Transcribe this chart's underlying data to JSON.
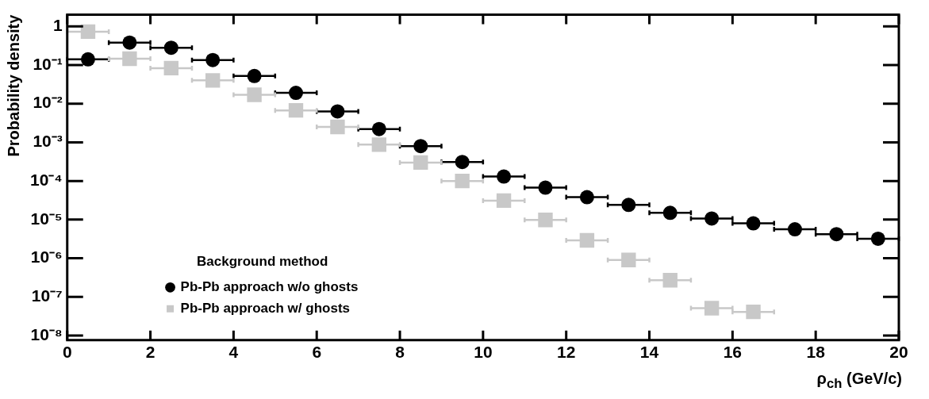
{
  "chart_data": {
    "type": "scatter",
    "xlabel": "ρ$_{ch}$ (GeV/c)",
    "ylabel": "Probability density",
    "legend_title": "Background method",
    "x": [
      0.5,
      1.5,
      2.5,
      3.5,
      4.5,
      5.5,
      6.5,
      7.5,
      8.5,
      9.5,
      10.5,
      11.5,
      12.5,
      13.5,
      14.5,
      15.5,
      16.5,
      17.5,
      18.5,
      19.5
    ],
    "series": [
      {
        "name": "Pb-Pb approach w/o ghosts",
        "color": "#000000",
        "marker": "circle",
        "values": [
          0.14,
          0.38,
          0.28,
          0.135,
          0.052,
          0.019,
          0.0063,
          0.0022,
          0.0008,
          0.00031,
          0.00013,
          6.7e-05,
          3.8e-05,
          2.4e-05,
          1.5e-05,
          1.07e-05,
          8e-06,
          5.6e-06,
          4.2e-06,
          3.2e-06
        ],
        "xerrors": [
          0.5,
          0.5,
          0.5,
          0.5,
          0.5,
          0.5,
          0.5,
          0.5,
          0.5,
          0.5,
          0.5,
          0.5,
          0.5,
          0.5,
          0.5,
          0.5,
          0.5,
          0.5,
          0.5,
          0.5
        ]
      },
      {
        "name": "Pb-Pb approach w/ ghosts",
        "color": "#c8c8c8",
        "marker": "square",
        "values": [
          0.73,
          0.146,
          0.083,
          0.04,
          0.017,
          0.0067,
          0.0025,
          0.00087,
          0.0003,
          0.0001,
          3.1e-05,
          9.8e-06,
          2.9e-06,
          9e-07,
          2.7e-07,
          5.1e-08,
          4.1e-08,
          null,
          null,
          null
        ],
        "xerrors": [
          0.5,
          0.5,
          0.5,
          0.5,
          0.5,
          0.5,
          0.5,
          0.5,
          0.5,
          0.5,
          0.5,
          0.5,
          0.5,
          0.5,
          0.5,
          0.5,
          0.5,
          null,
          null,
          null
        ]
      }
    ],
    "xlim": [
      0,
      20
    ],
    "xticks": [
      0,
      2,
      4,
      6,
      8,
      10,
      12,
      14,
      16,
      18,
      20
    ],
    "ylim": [
      7.6e-09,
      2
    ],
    "yticks": [
      {
        "value": 1e-08,
        "label": "10⁻⁸"
      },
      {
        "value": 1e-07,
        "label": "10⁻⁷"
      },
      {
        "value": 1e-06,
        "label": "10⁻⁶"
      },
      {
        "value": 1e-05,
        "label": "10⁻⁵"
      },
      {
        "value": 0.0001,
        "label": "10⁻⁴"
      },
      {
        "value": 0.001,
        "label": "10⁻³"
      },
      {
        "value": 0.01,
        "label": "10⁻²"
      },
      {
        "value": 0.1,
        "label": "10⁻¹"
      },
      1
    ],
    "log": "y",
    "grid": false,
    "legend": "bottom left"
  }
}
